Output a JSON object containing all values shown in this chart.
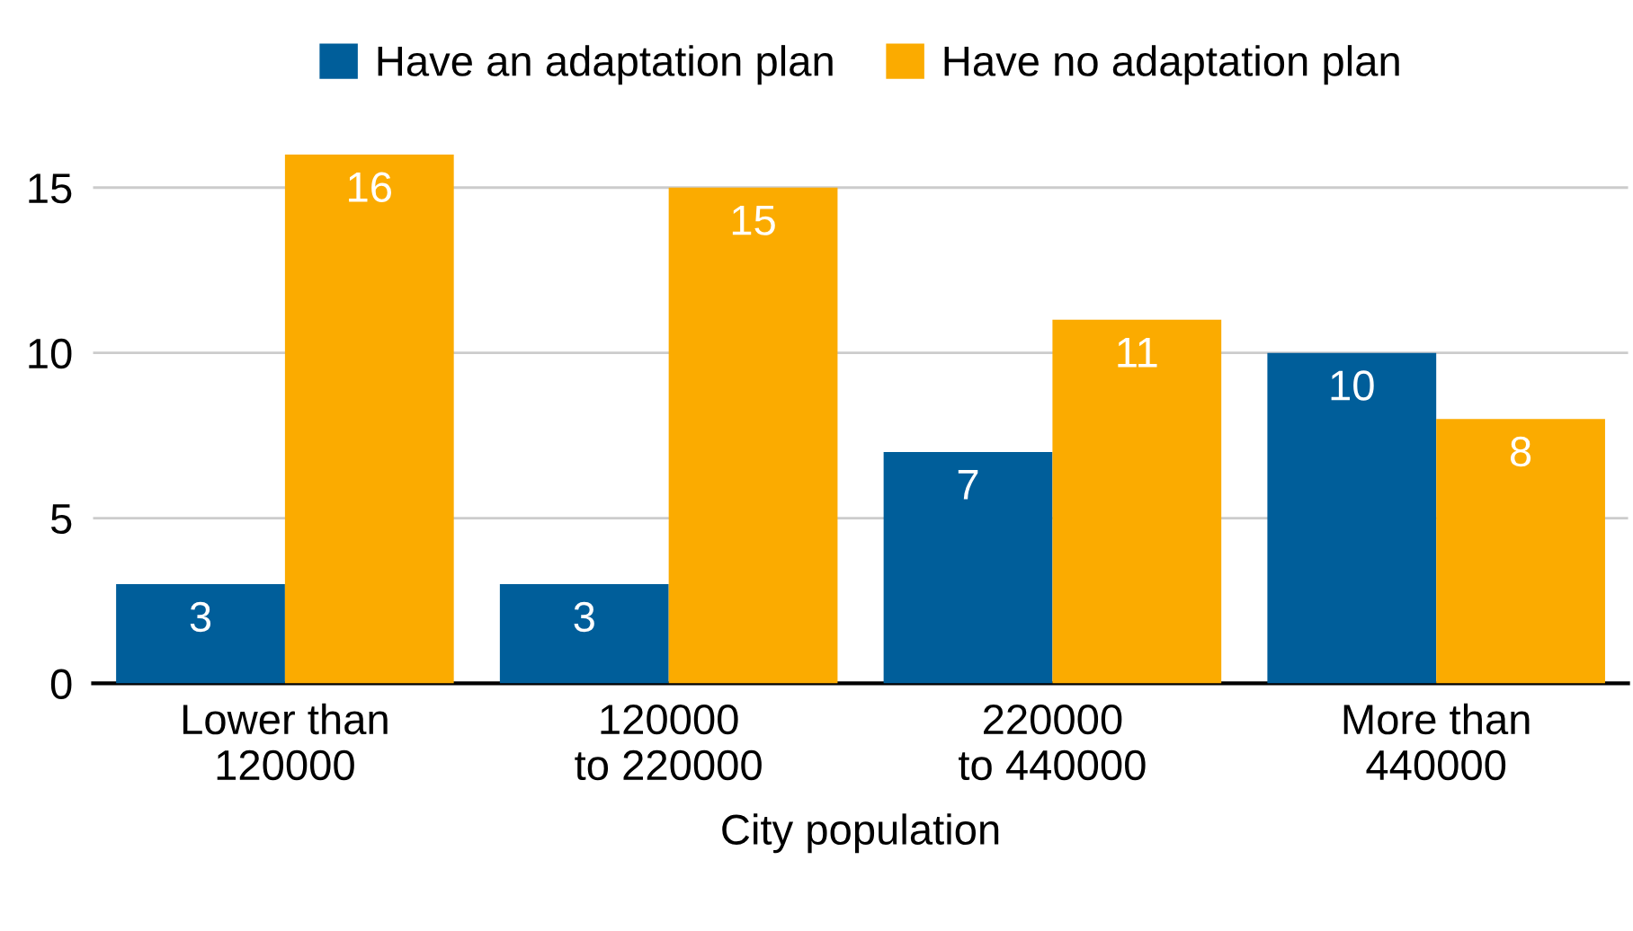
{
  "chart_data": {
    "type": "bar",
    "xlabel": "City population",
    "categories": [
      "Lower than\n120000",
      "120000\nto 220000",
      "220000\nto 440000",
      "More than\n440000"
    ],
    "series": [
      {
        "name": "Have an adaptation plan",
        "color": "#005e9a",
        "values": [
          3,
          3,
          7,
          10
        ]
      },
      {
        "name": "Have no adaptation plan",
        "color": "#fbab00",
        "values": [
          16,
          15,
          11,
          8
        ]
      }
    ],
    "ylim": [
      0,
      16
    ],
    "yticks": [
      0,
      5,
      10,
      15
    ],
    "grid": "y",
    "legend": "top",
    "data_labels": true
  }
}
